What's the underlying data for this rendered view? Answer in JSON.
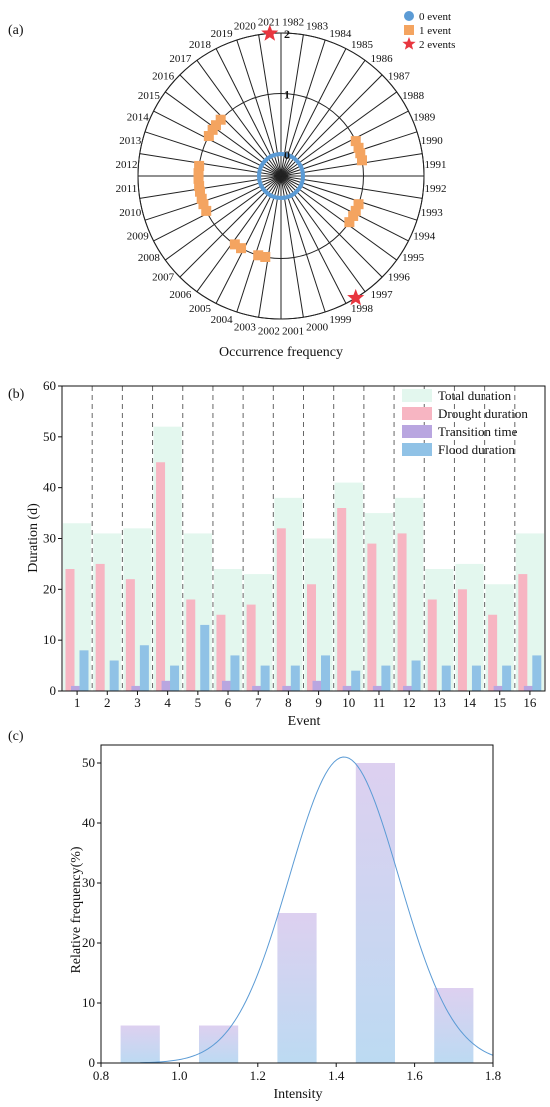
{
  "chart_data": [
    {
      "panel": "(a)",
      "type": "scatter",
      "subtype": "polar",
      "xlabel": "Occurrence frequency",
      "radial_ticks": [
        "0",
        "1",
        "2"
      ],
      "radial_range": [
        0,
        2
      ],
      "categories": [
        "1982",
        "1983",
        "1984",
        "1985",
        "1986",
        "1987",
        "1988",
        "1989",
        "1990",
        "1991",
        "1992",
        "1993",
        "1994",
        "1995",
        "1996",
        "1997",
        "1998",
        "1999",
        "2000",
        "2001",
        "2002",
        "2003",
        "2004",
        "2005",
        "2006",
        "2007",
        "2008",
        "2009",
        "2010",
        "2011",
        "2012",
        "2013",
        "2014",
        "2015",
        "2016",
        "2017",
        "2018",
        "2019",
        "2020",
        "2021"
      ],
      "values": [
        0,
        0,
        0,
        0,
        0,
        0,
        0,
        1,
        1,
        0,
        0,
        0,
        1,
        1,
        0,
        0,
        2,
        0,
        0,
        0,
        0,
        1,
        0,
        1,
        0,
        0,
        0,
        1,
        1,
        1,
        1,
        0,
        0,
        1,
        1,
        0,
        0,
        0,
        0,
        2
      ],
      "legend": [
        {
          "label": "0 event",
          "marker": "circle",
          "color": "#5b9bd5"
        },
        {
          "label": "1 event",
          "marker": "square",
          "color": "#f4a460"
        },
        {
          "label": "2 events",
          "marker": "star",
          "color": "#e8363f"
        }
      ],
      "legend_position": "top-right"
    },
    {
      "panel": "(b)",
      "type": "bar",
      "xlabel": "Event",
      "ylabel": "Duration (d)",
      "ylim": [
        0,
        60
      ],
      "yticks": [
        "0",
        "10",
        "20",
        "30",
        "40",
        "50",
        "60"
      ],
      "categories": [
        "1",
        "2",
        "3",
        "4",
        "5",
        "6",
        "7",
        "8",
        "9",
        "10",
        "11",
        "12",
        "13",
        "14",
        "15",
        "16"
      ],
      "series": [
        {
          "name": "Total duration",
          "color": "#e3f7ee",
          "values": [
            33,
            31,
            32,
            52,
            31,
            24,
            23,
            38,
            30,
            41,
            35,
            38,
            24,
            25,
            21,
            31
          ]
        },
        {
          "name": "Drought duration",
          "color": "#f7b5c2",
          "values": [
            24,
            25,
            22,
            45,
            18,
            15,
            17,
            32,
            21,
            36,
            29,
            31,
            18,
            20,
            15,
            23
          ]
        },
        {
          "name": "Transition time",
          "color": "#b9a6e0",
          "values": [
            1,
            0,
            1,
            2,
            0,
            2,
            1,
            1,
            2,
            1,
            1,
            1,
            0,
            0,
            1,
            1
          ]
        },
        {
          "name": "Flood duration",
          "color": "#90c2e6",
          "values": [
            8,
            6,
            9,
            5,
            13,
            7,
            5,
            5,
            7,
            4,
            5,
            6,
            5,
            5,
            5,
            7
          ]
        }
      ],
      "legend_position": "top-right"
    },
    {
      "panel": "(c)",
      "type": "bar",
      "xlabel": "Intensity",
      "ylabel": "Relative frequency(%)",
      "xlim": [
        0.8,
        1.8
      ],
      "ylim": [
        0,
        53
      ],
      "xticks": [
        "0.8",
        "1.0",
        "1.2",
        "1.4",
        "1.6",
        "1.8"
      ],
      "yticks": [
        "0",
        "10",
        "20",
        "30",
        "40",
        "50"
      ],
      "x": [
        0.9,
        1.1,
        1.3,
        1.5,
        1.7
      ],
      "values": [
        6.25,
        6.25,
        25,
        50,
        12.5
      ],
      "fit_curve": {
        "type": "normal",
        "mean": 1.42,
        "sd": 0.14,
        "peak": 51,
        "x_start": 0.9,
        "x_end": 1.8
      }
    }
  ],
  "colors": {
    "polar_ring": "#5b9bd5",
    "bar_gradient_top": "#ddd0f0",
    "bar_gradient_bottom": "#bcdaf2",
    "fit_curve": "#5b9bd5"
  }
}
